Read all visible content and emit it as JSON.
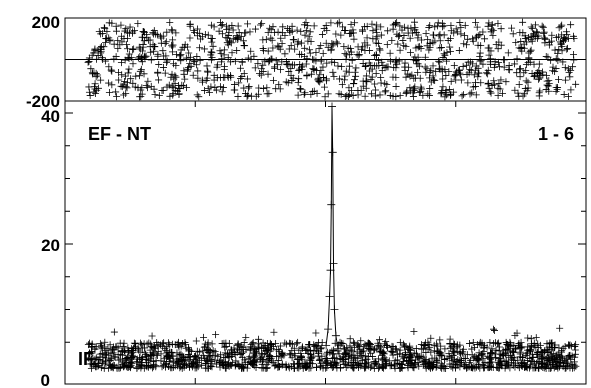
{
  "chart_data": [
    {
      "type": "scatter",
      "panel": "phase",
      "ylim": [
        -200,
        200
      ],
      "yticks": [
        {
          "value": 200,
          "label": "200"
        },
        {
          "value": -200,
          "label": "-200"
        }
      ],
      "marker": "plus",
      "description_of_points": "dense cloud of + markers spanning -180 to 180 across all channels",
      "points_range": [
        -180,
        180
      ]
    },
    {
      "type": "line",
      "panel": "amplitude",
      "title_left": "EF - NT",
      "title_right": "1 - 6",
      "corner_label": "IF",
      "ylim": [
        0,
        40
      ],
      "yticks": [
        {
          "value": 40,
          "label": "40"
        },
        {
          "value": 20,
          "label": "20"
        },
        {
          "value": 0,
          "label": "0"
        }
      ],
      "marker": "plus",
      "noise_level": [
        1,
        5
      ],
      "peak": {
        "x_fraction": 0.5,
        "value": 41
      },
      "peak_shape": [
        {
          "dx": -0.012,
          "value": 4.5
        },
        {
          "dx": -0.008,
          "value": 7
        },
        {
          "dx": -0.005,
          "value": 12
        },
        {
          "dx": -0.003,
          "value": 16
        },
        {
          "dx": -0.0015,
          "value": 26
        },
        {
          "dx": 0,
          "value": 41
        },
        {
          "dx": 0.0015,
          "value": 34
        },
        {
          "dx": 0.003,
          "value": 17
        },
        {
          "dx": 0.005,
          "value": 10
        },
        {
          "dx": 0.008,
          "value": 6
        },
        {
          "dx": 0.012,
          "value": 4
        }
      ]
    }
  ]
}
